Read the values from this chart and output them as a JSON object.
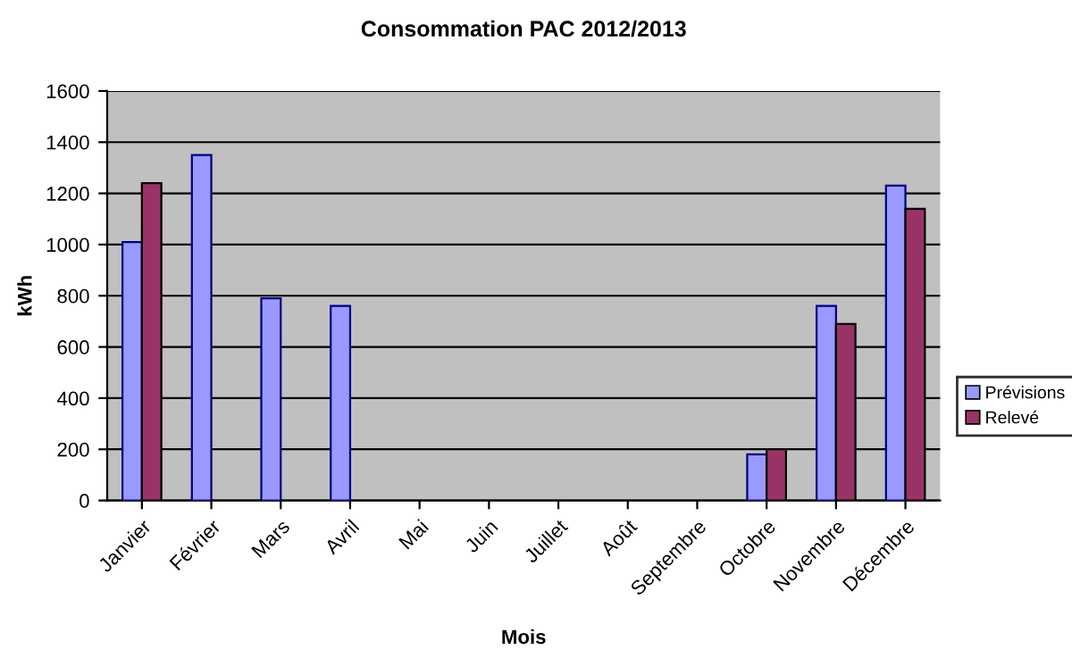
{
  "chart_data": {
    "type": "bar",
    "title": "Consommation PAC 2012/2013",
    "xlabel": "Mois",
    "ylabel": "kWh",
    "categories": [
      "Janvier",
      "Février",
      "Mars",
      "Avril",
      "Mai",
      "Juin",
      "Juillet",
      "Août",
      "Septembre",
      "Octobre",
      "Novembre",
      "Décembre"
    ],
    "series": [
      {
        "name": "Prévisions",
        "color": "#9999ff",
        "values": [
          1010,
          1350,
          790,
          760,
          null,
          null,
          null,
          null,
          null,
          180,
          760,
          1230
        ]
      },
      {
        "name": "Relevé",
        "color": "#993366",
        "values": [
          1240,
          null,
          null,
          null,
          null,
          null,
          null,
          null,
          null,
          200,
          690,
          1140
        ]
      }
    ],
    "ylim": [
      0,
      1600
    ],
    "yticks": [
      0,
      200,
      400,
      600,
      800,
      1000,
      1200,
      1400,
      1600
    ],
    "grid": "y",
    "legend": "right"
  }
}
